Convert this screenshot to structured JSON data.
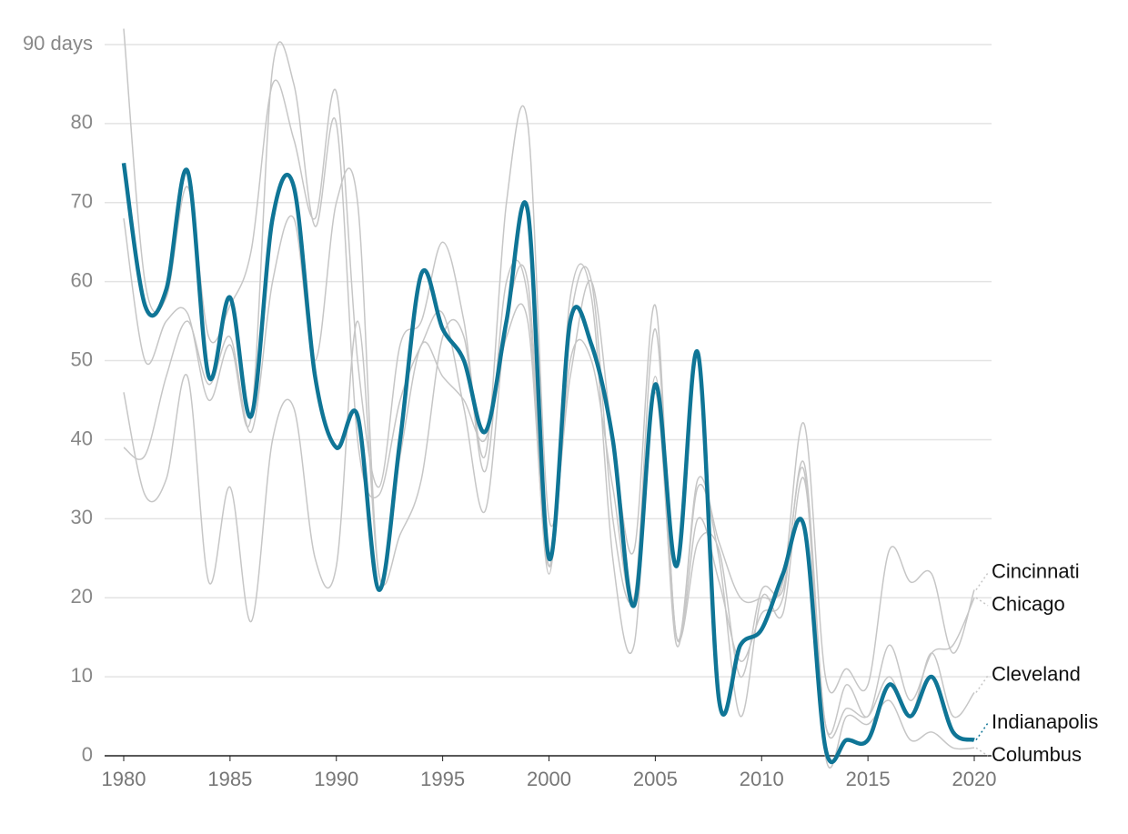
{
  "chart_data": {
    "type": "line",
    "x": [
      1980,
      1981,
      1982,
      1983,
      1984,
      1985,
      1986,
      1987,
      1988,
      1989,
      1990,
      1991,
      1992,
      1993,
      1994,
      1995,
      1996,
      1997,
      1998,
      1999,
      2000,
      2001,
      2002,
      2003,
      2004,
      2005,
      2006,
      2007,
      2008,
      2009,
      2010,
      2011,
      2012,
      2013,
      2014,
      2015,
      2016,
      2017,
      2018,
      2019,
      2020
    ],
    "xlim": [
      1980,
      2020
    ],
    "xticks": [
      1980,
      1985,
      1990,
      1995,
      2000,
      2005,
      2010,
      2015,
      2020
    ],
    "ylim": [
      0,
      90
    ],
    "yticks": [
      0,
      10,
      20,
      30,
      40,
      50,
      60,
      70,
      80,
      {
        "value": 90,
        "label": "90 days"
      }
    ],
    "grid": true,
    "series": [
      {
        "name": "Cincinnati",
        "color": "#c6c6c6",
        "values": [
          92,
          60,
          58,
          72,
          53,
          57,
          64,
          85,
          78,
          68,
          84,
          50,
          34,
          52,
          55,
          65,
          55,
          38,
          70,
          80,
          30,
          48,
          60,
          40,
          26,
          57,
          15,
          35,
          27,
          20,
          20,
          22,
          42,
          10,
          11,
          9,
          26,
          22,
          23,
          13,
          21
        ]
      },
      {
        "name": "Chicago",
        "color": "#c6c6c6",
        "values": [
          68,
          50,
          55,
          56,
          45,
          52,
          43,
          87,
          85,
          67,
          80,
          40,
          33,
          45,
          52,
          56,
          44,
          31,
          55,
          60,
          24,
          50,
          50,
          34,
          20,
          54,
          15,
          30,
          22,
          12,
          18,
          20,
          37,
          4,
          9,
          5,
          14,
          7,
          13,
          14,
          20
        ]
      },
      {
        "name": "Cleveland",
        "color": "#c6c6c6",
        "values": [
          46,
          33,
          35,
          48,
          22,
          34,
          17,
          40,
          44,
          25,
          24,
          55,
          23,
          28,
          35,
          53,
          53,
          36,
          60,
          58,
          23,
          58,
          58,
          25,
          14,
          48,
          14,
          34,
          25,
          5,
          20,
          18,
          35,
          4,
          6,
          5,
          10,
          5,
          13,
          5,
          8
        ]
      },
      {
        "name": "Columbus",
        "color": "#c6c6c6",
        "values": [
          39,
          38,
          48,
          55,
          47,
          53,
          41,
          60,
          68,
          50,
          70,
          70,
          23,
          38,
          52,
          48,
          45,
          40,
          53,
          55,
          24,
          55,
          60,
          30,
          20,
          46,
          15,
          27,
          26,
          10,
          21,
          21,
          36,
          0,
          5,
          4,
          7,
          2,
          3,
          1,
          1
        ]
      },
      {
        "name": "Indianapolis",
        "color": "#0f7596",
        "highlight": true,
        "values": [
          75,
          57,
          59,
          74,
          48,
          58,
          43,
          68,
          72,
          48,
          39,
          43,
          21,
          40,
          61,
          54,
          50,
          41,
          55,
          69,
          25,
          55,
          52,
          40,
          19,
          47,
          24,
          51,
          7,
          14,
          16,
          23,
          29,
          1,
          2,
          2,
          9,
          5,
          10,
          3,
          2
        ]
      }
    ]
  }
}
